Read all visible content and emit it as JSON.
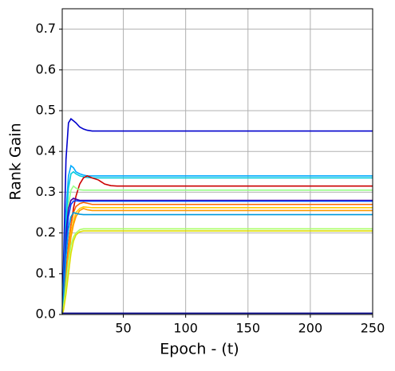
{
  "chart_data": {
    "type": "line",
    "xlabel": "Epoch - (t)",
    "ylabel": "Rank Gain",
    "x": [
      1,
      2,
      4,
      6,
      8,
      10,
      12,
      15,
      18,
      21,
      25,
      30,
      35,
      40,
      45,
      250
    ],
    "xlim": [
      1,
      250
    ],
    "xticks": [
      50,
      100,
      150,
      200,
      250
    ],
    "ylim": [
      0,
      0.75
    ],
    "yticks": [
      {
        "value": 0,
        "label": "0.0"
      },
      0.1,
      0.2,
      0.3,
      0.4,
      0.5,
      0.6,
      0.7
    ],
    "grid": true,
    "series": [
      {
        "color": "#0000cc",
        "values": [
          0,
          0.12,
          0.38,
          0.47,
          0.48,
          0.475,
          0.47,
          0.46,
          0.455,
          0.452,
          0.45,
          0.45,
          0.45,
          0.45,
          0.45,
          0.45
        ]
      },
      {
        "color": "#00aaff",
        "values": [
          0,
          0.08,
          0.25,
          0.34,
          0.365,
          0.36,
          0.35,
          0.345,
          0.342,
          0.34,
          0.34,
          0.34,
          0.34,
          0.34,
          0.34,
          0.34
        ]
      },
      {
        "color": "#00ccdd",
        "values": [
          0,
          0.07,
          0.22,
          0.31,
          0.345,
          0.35,
          0.345,
          0.34,
          0.338,
          0.336,
          0.335,
          0.335,
          0.335,
          0.335,
          0.335,
          0.335
        ]
      },
      {
        "color": "#cc0000",
        "values": [
          0,
          0.03,
          0.1,
          0.17,
          0.22,
          0.26,
          0.29,
          0.32,
          0.335,
          0.34,
          0.335,
          0.33,
          0.32,
          0.316,
          0.315,
          0.315
        ]
      },
      {
        "color": "#99ff88",
        "values": [
          0,
          0.05,
          0.18,
          0.27,
          0.305,
          0.315,
          0.31,
          0.306,
          0.305,
          0.305,
          0.305,
          0.305,
          0.305,
          0.305,
          0.305,
          0.305
        ]
      },
      {
        "color": "#4400aa",
        "values": [
          0,
          0.06,
          0.2,
          0.26,
          0.28,
          0.285,
          0.283,
          0.28,
          0.28,
          0.28,
          0.28,
          0.28,
          0.28,
          0.28,
          0.28,
          0.28
        ]
      },
      {
        "color": "#0044ff",
        "values": [
          0,
          0.05,
          0.17,
          0.24,
          0.27,
          0.278,
          0.279,
          0.278,
          0.278,
          0.278,
          0.278,
          0.278,
          0.278,
          0.278,
          0.278,
          0.278
        ]
      },
      {
        "color": "#ff6600",
        "values": [
          0,
          0.03,
          0.1,
          0.17,
          0.22,
          0.25,
          0.265,
          0.272,
          0.275,
          0.273,
          0.27,
          0.27,
          0.27,
          0.27,
          0.27,
          0.27
        ]
      },
      {
        "color": "#ffcc00",
        "values": [
          0,
          0.02,
          0.08,
          0.15,
          0.2,
          0.23,
          0.25,
          0.26,
          0.264,
          0.263,
          0.262,
          0.262,
          0.262,
          0.262,
          0.262,
          0.262
        ]
      },
      {
        "color": "#ff9900",
        "values": [
          0,
          0.02,
          0.08,
          0.14,
          0.19,
          0.22,
          0.24,
          0.255,
          0.26,
          0.257,
          0.255,
          0.255,
          0.255,
          0.255,
          0.255,
          0.255
        ]
      },
      {
        "color": "#0099dd",
        "values": [
          0,
          0.04,
          0.14,
          0.21,
          0.24,
          0.25,
          0.248,
          0.246,
          0.245,
          0.245,
          0.245,
          0.245,
          0.245,
          0.245,
          0.245,
          0.245
        ]
      },
      {
        "color": "#aaff66",
        "values": [
          0,
          0.02,
          0.07,
          0.13,
          0.17,
          0.19,
          0.2,
          0.208,
          0.21,
          0.21,
          0.21,
          0.21,
          0.21,
          0.21,
          0.21,
          0.21
        ]
      },
      {
        "color": "#dddd00",
        "values": [
          0,
          0.01,
          0.05,
          0.1,
          0.15,
          0.18,
          0.195,
          0.203,
          0.205,
          0.205,
          0.205,
          0.205,
          0.205,
          0.205,
          0.205,
          0.205
        ]
      },
      {
        "color": "#000088",
        "values": [
          0.003,
          0.003,
          0.003,
          0.003,
          0.003,
          0.003,
          0.003,
          0.003,
          0.003,
          0.003,
          0.003,
          0.003,
          0.003,
          0.003,
          0.003,
          0.003
        ]
      }
    ]
  }
}
